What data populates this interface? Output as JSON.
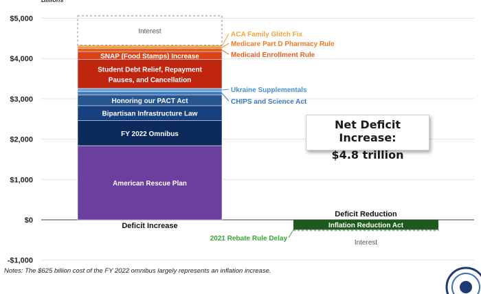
{
  "chart_data": {
    "type": "stacked-bar",
    "ylabel": "Billions",
    "ylim": [
      -1000,
      5200
    ],
    "yticks": [
      -1000,
      0,
      1000,
      2000,
      3000,
      4000,
      5000
    ],
    "ytick_labels": [
      "-$1,000",
      "$0",
      "$1,000",
      "$2,000",
      "$3,000",
      "$4,000",
      "$5,000"
    ],
    "categories": [
      "Deficit Increase",
      "Deficit Reduction"
    ],
    "grid": true,
    "increase_segments": [
      {
        "label": "American Rescue Plan",
        "value": 1840,
        "color": "#6a3f9d",
        "label_inside": true,
        "text_color": "#ffffff"
      },
      {
        "label": "FY 2022 Omnibus",
        "value": 620,
        "color": "#0d2a5c",
        "label_inside": true,
        "text_color": "#ffffff"
      },
      {
        "label": "Bipartisan Infrastructure Law",
        "value": 370,
        "color": "#17407e",
        "label_inside": true,
        "text_color": "#ffffff"
      },
      {
        "label": "Honoring our PACT Act",
        "value": 270,
        "color": "#27558f",
        "label_inside": true,
        "text_color": "#ffffff"
      },
      {
        "label": "CHIPS and Science Act",
        "value": 80,
        "color": "#3f79bf",
        "label_inside": false,
        "text_color": "#3a78c0"
      },
      {
        "label": "Ukraine Supplementals",
        "value": 80,
        "color": "#6aa6e0",
        "label_inside": false,
        "text_color": "#4a8fd6"
      },
      {
        "label": "Student Debt Relief, Repayment Pauses, and Cancellation",
        "value": 720,
        "color": "#c0260f",
        "label_inside": true,
        "text_color": "#ffffff"
      },
      {
        "label": "SNAP (Food Stamps) Increase",
        "value": 190,
        "color": "#d8431a",
        "label_inside": true,
        "text_color": "#ffffff"
      },
      {
        "label": "Medicaid Enrollment Rule",
        "value": 80,
        "color": "#e85f1d",
        "label_inside": false,
        "text_color": "#e8601e"
      },
      {
        "label": "Medicare Part D Pharmacy Rule",
        "value": 40,
        "color": "#f07a21",
        "label_inside": false,
        "text_color": "#f07a21"
      },
      {
        "label": "ACA Family Glitch Fix",
        "value": 40,
        "color": "#f4a23a",
        "label_inside": false,
        "text_color": "#f4a23a"
      },
      {
        "label": "Interest",
        "value": 730,
        "color": "none",
        "label_inside": true,
        "text_color": "#555555",
        "dashed": true
      }
    ],
    "reduction_segments": [
      {
        "label": "Inflation Reduction Act",
        "value": -238,
        "color": "#1e5a1e",
        "label_inside": true,
        "text_color": "#ffffff"
      },
      {
        "label": "2021 Rebate Rule Delay",
        "value": -12,
        "color": "#4caf50",
        "label_inside": false,
        "text_color": "#3aa33a"
      },
      {
        "label": "Interest",
        "value": -20,
        "color": "none",
        "label_inside": false,
        "text_color": "#555555",
        "dashed": true
      }
    ]
  },
  "callout": {
    "line1": "Net Deficit Increase:",
    "line2": "$4.8 trillion"
  },
  "notes": "Notes: The $625 billion cost of the FY 2022 omnibus largely represents an inflation increase.",
  "reduction_header": "Deficit Reduction"
}
